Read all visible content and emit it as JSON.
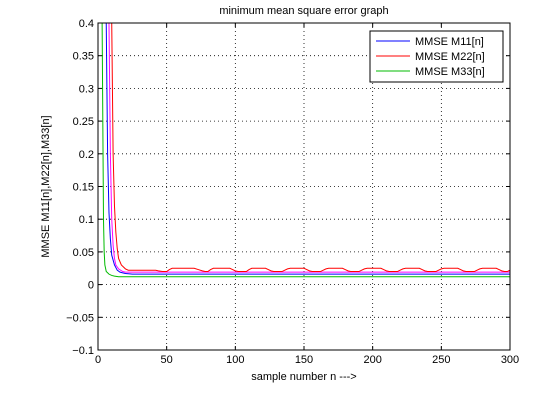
{
  "chart_data": {
    "type": "line",
    "title": "minimum mean square error graph",
    "xlabel": "sample number n --->",
    "ylabel": "MMSE M11[n],M22[n],M33[n]",
    "xlim": [
      0,
      300
    ],
    "ylim": [
      -0.1,
      0.4
    ],
    "xticks": [
      0,
      50,
      100,
      150,
      200,
      250,
      300
    ],
    "yticks": [
      -0.1,
      -0.05,
      0,
      0.05,
      0.1,
      0.15,
      0.2,
      0.25,
      0.3,
      0.35,
      0.4
    ],
    "xtick_labels": [
      "0",
      "50",
      "100",
      "150",
      "200",
      "250",
      "300"
    ],
    "ytick_labels": [
      "−0.1",
      "−0.05",
      "0",
      "0.05",
      "0.1",
      "0.15",
      "0.2",
      "0.25",
      "0.3",
      "0.35",
      "0.4"
    ],
    "grid": true,
    "legend_position": "top-right",
    "series": [
      {
        "name": "MMSE M11[n]",
        "color": "#0000ff",
        "x": [
          6,
          7,
          8,
          9,
          10,
          12,
          14,
          16,
          18,
          20,
          25,
          30,
          300
        ],
        "y": [
          0.4,
          0.2,
          0.11,
          0.07,
          0.045,
          0.03,
          0.022,
          0.019,
          0.018,
          0.017,
          0.016,
          0.016,
          0.016
        ]
      },
      {
        "name": "MMSE M22[n]",
        "color": "#ff0000",
        "x": [
          10,
          10.5,
          11,
          12,
          13,
          14,
          15,
          17,
          20,
          22,
          24,
          26,
          28,
          30,
          32,
          34,
          36,
          38,
          40,
          42,
          44,
          47,
          50,
          52,
          54,
          56,
          58,
          60,
          63,
          66,
          70,
          73,
          76,
          78,
          80,
          82,
          84,
          86,
          88,
          90,
          92,
          94,
          96,
          98,
          100,
          102,
          104,
          106,
          108,
          110,
          112,
          114,
          116,
          118,
          120,
          122,
          124,
          126,
          128,
          130,
          132,
          134,
          136,
          138,
          140,
          142,
          144,
          146,
          148,
          150,
          152,
          154,
          156,
          158,
          160,
          162,
          164,
          166,
          168,
          170,
          172,
          174,
          176,
          178,
          180,
          182,
          184,
          186,
          188,
          190,
          192,
          194,
          196,
          198,
          200,
          202,
          204,
          206,
          208,
          210,
          212,
          214,
          216,
          218,
          220,
          222,
          224,
          226,
          228,
          230,
          232,
          234,
          236,
          238,
          240,
          242,
          244,
          246,
          248,
          250,
          252,
          254,
          256,
          258,
          260,
          262,
          264,
          266,
          268,
          270,
          272,
          274,
          276,
          278,
          280,
          282,
          284,
          286,
          288,
          290,
          292,
          294,
          296,
          298,
          300
        ],
        "y": [
          0.4,
          0.3,
          0.2,
          0.12,
          0.08,
          0.055,
          0.04,
          0.03,
          0.024,
          0.022,
          0.022,
          0.022,
          0.022,
          0.022,
          0.022,
          0.022,
          0.022,
          0.022,
          0.022,
          0.022,
          0.021,
          0.02,
          0.02,
          0.023,
          0.025,
          0.025,
          0.025,
          0.025,
          0.025,
          0.025,
          0.025,
          0.023,
          0.021,
          0.02,
          0.02,
          0.023,
          0.025,
          0.025,
          0.025,
          0.025,
          0.025,
          0.025,
          0.025,
          0.023,
          0.021,
          0.02,
          0.02,
          0.02,
          0.02,
          0.023,
          0.025,
          0.025,
          0.025,
          0.025,
          0.025,
          0.025,
          0.023,
          0.021,
          0.02,
          0.02,
          0.02,
          0.02,
          0.022,
          0.024,
          0.025,
          0.025,
          0.025,
          0.025,
          0.025,
          0.025,
          0.023,
          0.021,
          0.02,
          0.02,
          0.02,
          0.02,
          0.022,
          0.024,
          0.025,
          0.025,
          0.025,
          0.025,
          0.025,
          0.025,
          0.023,
          0.021,
          0.02,
          0.02,
          0.02,
          0.02,
          0.022,
          0.024,
          0.025,
          0.025,
          0.025,
          0.025,
          0.025,
          0.025,
          0.023,
          0.021,
          0.02,
          0.02,
          0.02,
          0.02,
          0.022,
          0.024,
          0.025,
          0.025,
          0.025,
          0.025,
          0.025,
          0.025,
          0.023,
          0.021,
          0.02,
          0.02,
          0.02,
          0.02,
          0.022,
          0.024,
          0.025,
          0.025,
          0.025,
          0.025,
          0.025,
          0.025,
          0.023,
          0.021,
          0.02,
          0.02,
          0.02,
          0.02,
          0.022,
          0.024,
          0.025,
          0.025,
          0.025,
          0.025,
          0.025,
          0.025,
          0.023,
          0.021,
          0.02,
          0.02,
          0.022
        ]
      },
      {
        "name": "MMSE M33[n]",
        "color": "#00bb00",
        "x": [
          2,
          3,
          3.5,
          4,
          4.5,
          5,
          6,
          8,
          10,
          12,
          15,
          20,
          300
        ],
        "y": [
          0.4,
          0.4,
          0.25,
          0.1,
          0.05,
          0.03,
          0.02,
          0.016,
          0.014,
          0.013,
          0.012,
          0.012,
          0.012
        ]
      },
      {
        "name": "",
        "color": "#ff00ff",
        "x": [
          8,
          8.5,
          9,
          10,
          11,
          12,
          13,
          15,
          18,
          20,
          300
        ],
        "y": [
          0.4,
          0.3,
          0.2,
          0.1,
          0.06,
          0.04,
          0.03,
          0.024,
          0.02,
          0.019,
          0.019
        ]
      }
    ]
  }
}
